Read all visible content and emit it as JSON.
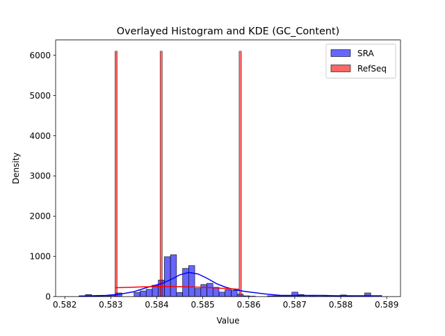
{
  "chart_data": {
    "type": "histogram",
    "title": "Overlayed Histogram and KDE (GC_Content)",
    "xlabel": "Value",
    "ylabel": "Density",
    "xlim": [
      0.5818,
      0.5893
    ],
    "ylim": [
      0,
      6380
    ],
    "xticks": [
      "0.582",
      "0.583",
      "0.584",
      "0.585",
      "0.586",
      "0.587",
      "0.588",
      "0.589"
    ],
    "yticks": [
      "0",
      "1000",
      "2000",
      "3000",
      "4000",
      "5000",
      "6000"
    ],
    "xtick_values": [
      0.582,
      0.583,
      0.584,
      0.585,
      0.586,
      0.587,
      0.588,
      0.589
    ],
    "ytick_values": [
      0,
      1000,
      2000,
      3000,
      4000,
      5000,
      6000
    ],
    "grid": false,
    "legend": {
      "placement": "upper right",
      "entries": [
        {
          "name": "SRA",
          "color": "#0000ff"
        },
        {
          "name": "RefSeq",
          "color": "#ff0000"
        }
      ]
    },
    "series": [
      {
        "name": "SRA",
        "color": "#0000ff",
        "fill_alpha": 0.6,
        "bin_width": 0.000132,
        "bin_start": 0.582317,
        "heights": [
          20,
          50,
          10,
          10,
          20,
          30,
          90,
          0,
          0,
          100,
          140,
          180,
          280,
          410,
          990,
          1040,
          100,
          700,
          770,
          200,
          300,
          330,
          230,
          110,
          170,
          150,
          60,
          20,
          10,
          0,
          0,
          20,
          20,
          20,
          20,
          110,
          50,
          30,
          20,
          30,
          10,
          20,
          10,
          40,
          10,
          20,
          20,
          90
        ],
        "kde": {
          "x": [
            0.5823,
            0.5826,
            0.5829,
            0.5832,
            0.5835,
            0.5838,
            0.5841,
            0.5843,
            0.5845,
            0.5847,
            0.5849,
            0.5851,
            0.5853,
            0.5855,
            0.5857,
            0.5859,
            0.5861,
            0.5864,
            0.5867,
            0.587,
            0.5873,
            0.5876,
            0.5879,
            0.5882,
            0.5885,
            0.5889
          ],
          "y": [
            10,
            20,
            30,
            60,
            120,
            230,
            320,
            420,
            540,
            600,
            560,
            450,
            320,
            230,
            170,
            130,
            100,
            60,
            30,
            30,
            30,
            30,
            20,
            20,
            20,
            20
          ]
        }
      },
      {
        "name": "RefSeq",
        "color": "#ff0000",
        "fill_alpha": 0.6,
        "bin_width": 5e-05,
        "bars": [
          {
            "x": 0.583115,
            "value": 6100
          },
          {
            "x": 0.584095,
            "value": 6100
          },
          {
            "x": 0.585815,
            "value": 6100
          }
        ],
        "kde": {
          "x": [
            0.5831,
            0.5834,
            0.5837,
            0.584,
            0.5843,
            0.5846,
            0.5849,
            0.5852,
            0.5855,
            0.5858
          ],
          "y": [
            220,
            230,
            240,
            250,
            250,
            245,
            235,
            220,
            200,
            180
          ]
        }
      }
    ]
  }
}
